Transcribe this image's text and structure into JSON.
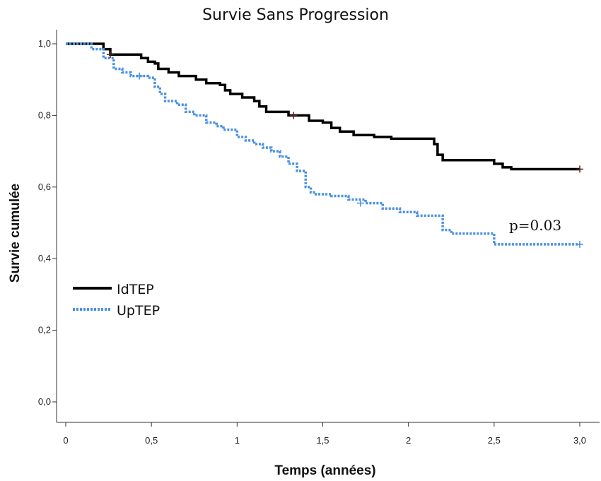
{
  "chart_data": {
    "type": "line",
    "subtype": "kaplan-meier step",
    "title": "Survie Sans Progression",
    "xlabel": "Temps (années)",
    "ylabel": "Survie cumulée",
    "xlim": [
      0,
      3.0
    ],
    "ylim": [
      0,
      1.0
    ],
    "x_ticks": [
      0,
      0.5,
      1,
      1.5,
      2,
      2.5,
      3.0
    ],
    "x_tick_labels": [
      "0",
      "0,5",
      "1",
      "1,5",
      "2",
      "2,5",
      "3,0"
    ],
    "y_ticks": [
      0,
      0.2,
      0.4,
      0.6,
      0.8,
      1.0
    ],
    "y_tick_labels": [
      "0,0",
      "0,2",
      "0,4",
      "0,6",
      "0,8",
      "1,0"
    ],
    "grid": false,
    "legend_position": "left",
    "annotation": "p=0.03",
    "series": [
      {
        "name": "IdTEP",
        "color": "#000000",
        "style": "solid",
        "x": [
          0,
          0.22,
          0.26,
          0.39,
          0.44,
          0.48,
          0.52,
          0.54,
          0.6,
          0.66,
          0.76,
          0.82,
          0.9,
          0.93,
          0.96,
          1.03,
          1.1,
          1.13,
          1.17,
          1.25,
          1.3,
          1.38,
          1.42,
          1.5,
          1.55,
          1.6,
          1.68,
          1.8,
          1.9,
          2.0,
          2.15,
          2.17,
          2.2,
          2.25,
          2.5,
          2.55,
          2.6,
          3.0
        ],
        "y": [
          1.0,
          0.985,
          0.97,
          0.97,
          0.96,
          0.95,
          0.945,
          0.93,
          0.92,
          0.91,
          0.9,
          0.89,
          0.885,
          0.87,
          0.86,
          0.85,
          0.84,
          0.825,
          0.81,
          0.81,
          0.8,
          0.8,
          0.785,
          0.78,
          0.765,
          0.755,
          0.745,
          0.74,
          0.735,
          0.735,
          0.72,
          0.69,
          0.675,
          0.675,
          0.665,
          0.655,
          0.65,
          0.65
        ],
        "censored_x": [
          0.26,
          1.33,
          3.0
        ],
        "censored_y": [
          0.97,
          0.8,
          0.65
        ]
      },
      {
        "name": "UpTEP",
        "color": "#4a90e2",
        "style": "dotted",
        "x": [
          0,
          0.15,
          0.22,
          0.28,
          0.33,
          0.38,
          0.48,
          0.52,
          0.55,
          0.58,
          0.65,
          0.7,
          0.75,
          0.82,
          0.88,
          0.92,
          1.0,
          1.05,
          1.1,
          1.15,
          1.2,
          1.25,
          1.3,
          1.35,
          1.4,
          1.43,
          1.46,
          1.55,
          1.65,
          1.75,
          1.85,
          1.95,
          2.05,
          2.2,
          2.25,
          2.5,
          3.0
        ],
        "y": [
          1.0,
          0.985,
          0.96,
          0.93,
          0.92,
          0.91,
          0.905,
          0.88,
          0.86,
          0.84,
          0.83,
          0.81,
          0.8,
          0.78,
          0.77,
          0.76,
          0.74,
          0.73,
          0.72,
          0.71,
          0.7,
          0.685,
          0.665,
          0.645,
          0.6,
          0.585,
          0.58,
          0.575,
          0.565,
          0.555,
          0.54,
          0.53,
          0.52,
          0.48,
          0.47,
          0.44,
          0.44
        ],
        "censored_x": [
          0.43,
          1.72,
          3.0
        ],
        "censored_y": [
          0.91,
          0.555,
          0.44
        ]
      }
    ]
  }
}
